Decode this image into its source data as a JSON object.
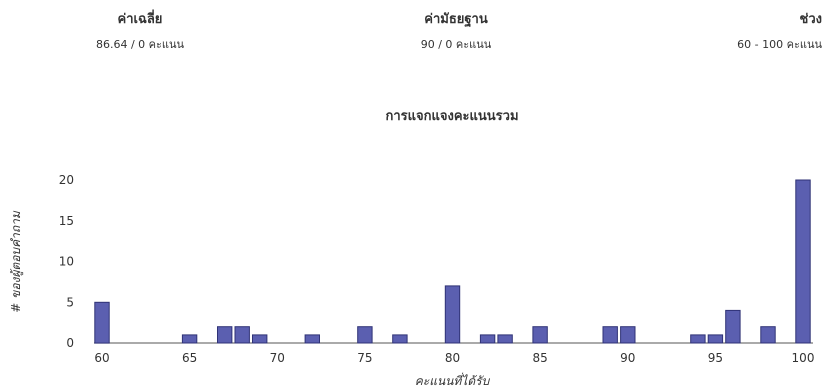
{
  "stats": {
    "mean": {
      "label": "ค่าเฉลี่ย",
      "value": "86.64 / 0 คะแนน"
    },
    "median": {
      "label": "ค่ามัธยฐาน",
      "value": "90 / 0 คะแนน"
    },
    "range": {
      "label": "ช่วง",
      "value": "60 - 100 คะแนน"
    }
  },
  "chart_data": {
    "type": "bar",
    "title": "การแจกแจงคะแนนรวม",
    "xlabel": "คะแนนที่ได้รับ",
    "ylabel": "# ของผู้ตอบคำถาม",
    "xlim": [
      60,
      100
    ],
    "ylim": [
      0,
      20
    ],
    "xticks": [
      60,
      65,
      70,
      75,
      80,
      85,
      90,
      95,
      100
    ],
    "yticks": [
      0,
      5,
      10,
      15,
      20
    ],
    "x": [
      60,
      65,
      67,
      68,
      69,
      72,
      75,
      77,
      80,
      82,
      83,
      85,
      89,
      90,
      94,
      95,
      96,
      98,
      100
    ],
    "values": [
      5,
      1,
      2,
      2,
      1,
      1,
      2,
      1,
      7,
      1,
      1,
      2,
      2,
      2,
      1,
      1,
      4,
      2,
      20
    ],
    "colors": {
      "bar_fill": "#5b5fb0",
      "bar_stroke": "#2f3276"
    }
  }
}
